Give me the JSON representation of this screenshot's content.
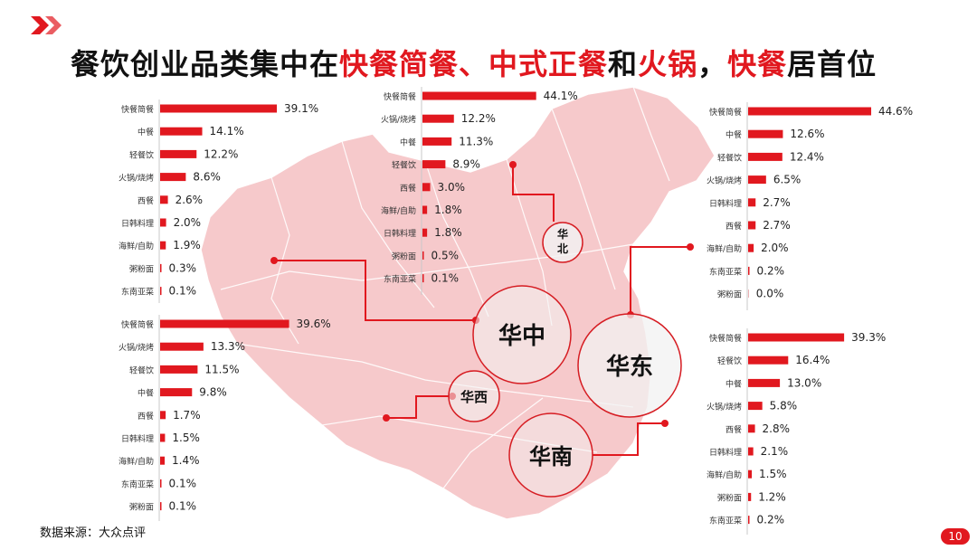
{
  "title": {
    "parts": [
      "餐饮创业品类集中在",
      "快餐简餐、",
      "中式正餐",
      "和",
      "火锅",
      "，",
      "快餐",
      "居首位"
    ]
  },
  "source": "数据来源：大众点评",
  "page_number": "10",
  "colors": {
    "accent": "#e1181f",
    "map_fill": "#f6c9cb",
    "circle_fill": "#f2f2f2"
  },
  "regions": {
    "huabei": "华北",
    "huazhong": "华中",
    "huadong": "华东",
    "huaxi": "华西",
    "huanan": "华南"
  },
  "chart_data": [
    {
      "type": "bar",
      "orientation": "horizontal",
      "region": "华中",
      "categories": [
        "快餐简餐",
        "中餐",
        "轻餐饮",
        "火锅/烧烤",
        "西餐",
        "日韩料理",
        "海鲜/自助",
        "粥粉面",
        "东南亚菜"
      ],
      "values": [
        39.1,
        14.1,
        12.2,
        8.6,
        2.6,
        2.0,
        1.9,
        0.3,
        0.1
      ]
    },
    {
      "type": "bar",
      "orientation": "horizontal",
      "region": "华北",
      "categories": [
        "快餐简餐",
        "火锅/烧烤",
        "中餐",
        "轻餐饮",
        "西餐",
        "海鲜/自助",
        "日韩料理",
        "粥粉面",
        "东南亚菜"
      ],
      "values": [
        44.1,
        12.2,
        11.3,
        8.9,
        3.0,
        1.8,
        1.8,
        0.5,
        0.1
      ]
    },
    {
      "type": "bar",
      "orientation": "horizontal",
      "region": "华东",
      "categories": [
        "快餐简餐",
        "中餐",
        "轻餐饮",
        "火锅/烧烤",
        "日韩料理",
        "西餐",
        "海鲜/自助",
        "东南亚菜",
        "粥粉面"
      ],
      "values": [
        44.6,
        12.6,
        12.4,
        6.5,
        2.7,
        2.7,
        2.0,
        0.2,
        0.0
      ]
    },
    {
      "type": "bar",
      "orientation": "horizontal",
      "region": "华西",
      "categories": [
        "快餐简餐",
        "火锅/烧烤",
        "轻餐饮",
        "中餐",
        "西餐",
        "日韩料理",
        "海鲜/自助",
        "东南亚菜",
        "粥粉面"
      ],
      "values": [
        39.6,
        13.3,
        11.5,
        9.8,
        1.7,
        1.5,
        1.4,
        0.1,
        0.1
      ]
    },
    {
      "type": "bar",
      "orientation": "horizontal",
      "region": "华南",
      "categories": [
        "快餐简餐",
        "轻餐饮",
        "中餐",
        "火锅/烧烤",
        "西餐",
        "日韩料理",
        "海鲜/自助",
        "粥粉面",
        "东南亚菜"
      ],
      "values": [
        39.3,
        16.4,
        13.0,
        5.8,
        2.8,
        2.1,
        1.5,
        1.2,
        0.2
      ]
    }
  ]
}
